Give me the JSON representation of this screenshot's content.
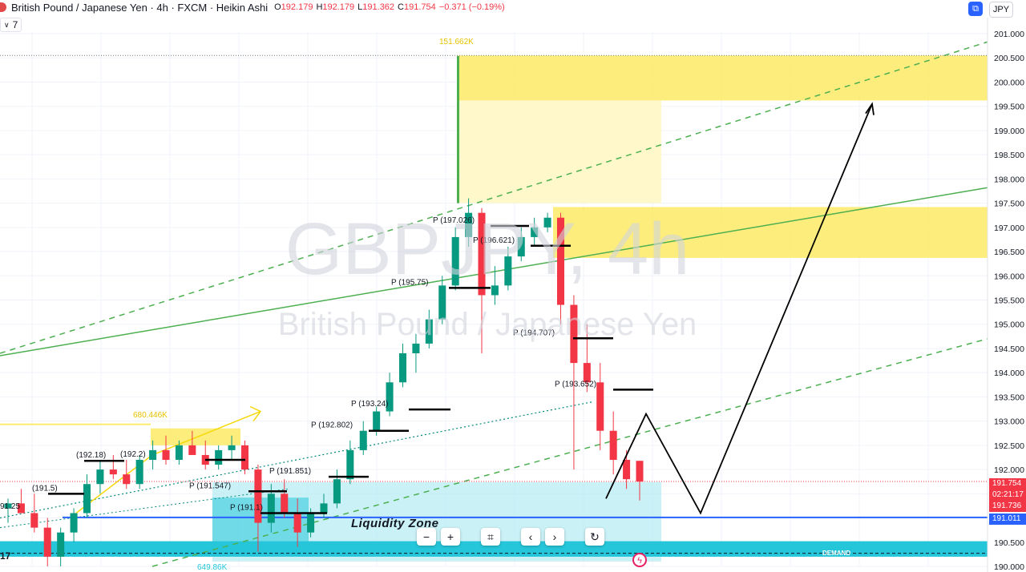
{
  "header": {
    "symbol_title": "British Pound / Japanese Yen · 4h · FXCM · Heikin Ashi",
    "open_label": "O",
    "open_value": "192.179",
    "high_label": "H",
    "high_value": "192.179",
    "low_label": "L",
    "low_value": "191.362",
    "close_label": "C",
    "close_value": "191.754",
    "change_value": "−0.371 (−0.19%)",
    "indicator_count": "7"
  },
  "toolbar": {
    "currency_label": "JPY",
    "toggle_icon": "chart-toggle-icon"
  },
  "watermark": {
    "symbol": "GBPJPY, 4h",
    "description": "British Pound / Japanese Yen"
  },
  "price_tags": {
    "current": "191.754",
    "countdown": "02:21:17",
    "secondary": "191.736",
    "liquidity_line": "191.011"
  },
  "annotations": {
    "liquidity_zone": "Liquidity Zone",
    "demand": "DEMAND",
    "volume_top": "151.662K",
    "volume_mid": "680.446K",
    "volume_bottom": "649.86K",
    "left_partial_a": "91.25",
    "left_partial_b": "17"
  },
  "navigation": {
    "zoom_out": "−",
    "zoom_in": "+",
    "reset": "⌗",
    "scroll_left": "‹",
    "scroll_right": "›",
    "refresh": "↻"
  },
  "colors": {
    "bull": "#089981",
    "bear": "#f23645",
    "zone_yellow": "#fdeb6e",
    "zone_light_yellow": "#fff7c4",
    "zone_cyan": "#26c6da",
    "zone_light_cyan": "#b2ebf2",
    "trend_green": "#4caf50",
    "liquidity_blue": "#2962ff"
  },
  "chart_data": {
    "type": "candlestick",
    "style": "Heikin Ashi",
    "symbol": "GBPJPY",
    "timeframe": "4h",
    "y_axis": {
      "side": "right",
      "ticks": [
        "201.000",
        "200.500",
        "200.000",
        "199.500",
        "199.000",
        "198.500",
        "198.000",
        "197.500",
        "197.000",
        "196.500",
        "196.000",
        "195.500",
        "195.000",
        "194.500",
        "194.000",
        "193.500",
        "193.000",
        "192.500",
        "192.000",
        "191.500",
        "191.000",
        "190.500",
        "190.000"
      ],
      "ylim": [
        190.0,
        201.0
      ]
    },
    "pivot_labels": [
      {
        "text": "P (197.026)",
        "price": 197.03
      },
      {
        "text": "P (196.621)",
        "price": 196.62
      },
      {
        "text": "P (195.75)",
        "price": 195.75
      },
      {
        "text": "P (194.707)",
        "price": 194.71
      },
      {
        "text": "P (193.652)",
        "price": 193.65
      },
      {
        "text": "P (193.24)",
        "price": 193.24
      },
      {
        "text": "P (192.802)",
        "price": 192.8
      },
      {
        "text": "P (191.851)",
        "price": 191.85
      },
      {
        "text": "P (191.547)",
        "price": 191.55
      },
      {
        "text": "P (191.1)",
        "price": 191.1
      },
      {
        "text": "(192.18)",
        "price": 192.18
      },
      {
        "text": "(191.5)",
        "price": 191.5
      },
      {
        "text": "(192.2)",
        "price": 192.2
      }
    ],
    "key_levels": {
      "current_close": 191.754,
      "liquidity_line": 191.011,
      "supply_zone_top": [
        199.62,
        200.55
      ],
      "supply_zone_mid": [
        196.37,
        197.42
      ],
      "demand_zone": [
        190.1,
        191.74
      ]
    },
    "projection_path_prices": [
      191.4,
      193.15,
      191.1,
      199.55
    ],
    "candles": [
      {
        "o": 191.2,
        "h": 191.4,
        "l": 190.9,
        "c": 191.3
      },
      {
        "o": 191.3,
        "h": 191.6,
        "l": 191.1,
        "c": 191.1
      },
      {
        "o": 191.1,
        "h": 191.5,
        "l": 190.7,
        "c": 190.8
      },
      {
        "o": 190.8,
        "h": 191.0,
        "l": 190.0,
        "c": 190.2
      },
      {
        "o": 190.2,
        "h": 190.8,
        "l": 190.0,
        "c": 190.7
      },
      {
        "o": 190.7,
        "h": 191.2,
        "l": 190.5,
        "c": 191.1
      },
      {
        "o": 191.1,
        "h": 191.9,
        "l": 191.0,
        "c": 191.7
      },
      {
        "o": 191.7,
        "h": 192.2,
        "l": 191.5,
        "c": 192.0
      },
      {
        "o": 192.0,
        "h": 192.3,
        "l": 191.8,
        "c": 191.9
      },
      {
        "o": 191.9,
        "h": 192.2,
        "l": 191.6,
        "c": 191.7
      },
      {
        "o": 191.7,
        "h": 192.3,
        "l": 191.6,
        "c": 192.2
      },
      {
        "o": 192.2,
        "h": 192.6,
        "l": 192.0,
        "c": 192.4
      },
      {
        "o": 192.4,
        "h": 192.7,
        "l": 192.1,
        "c": 192.2
      },
      {
        "o": 192.2,
        "h": 192.6,
        "l": 192.1,
        "c": 192.5
      },
      {
        "o": 192.5,
        "h": 192.8,
        "l": 192.3,
        "c": 192.3
      },
      {
        "o": 192.3,
        "h": 192.6,
        "l": 192.0,
        "c": 192.1
      },
      {
        "o": 192.1,
        "h": 192.5,
        "l": 192.0,
        "c": 192.4
      },
      {
        "o": 192.4,
        "h": 192.7,
        "l": 192.2,
        "c": 192.5
      },
      {
        "o": 192.5,
        "h": 192.6,
        "l": 191.9,
        "c": 192.0
      },
      {
        "o": 192.0,
        "h": 192.1,
        "l": 190.3,
        "c": 190.9
      },
      {
        "o": 190.9,
        "h": 191.7,
        "l": 190.7,
        "c": 191.5
      },
      {
        "o": 191.5,
        "h": 191.8,
        "l": 191.0,
        "c": 191.1
      },
      {
        "o": 191.1,
        "h": 191.4,
        "l": 190.4,
        "c": 190.7
      },
      {
        "o": 190.7,
        "h": 191.2,
        "l": 190.6,
        "c": 191.1
      },
      {
        "o": 191.1,
        "h": 191.5,
        "l": 191.0,
        "c": 191.3
      },
      {
        "o": 191.3,
        "h": 192.0,
        "l": 191.2,
        "c": 191.8
      },
      {
        "o": 191.8,
        "h": 192.6,
        "l": 191.7,
        "c": 192.4
      },
      {
        "o": 192.4,
        "h": 193.0,
        "l": 192.3,
        "c": 192.8
      },
      {
        "o": 192.8,
        "h": 193.3,
        "l": 192.7,
        "c": 193.2
      },
      {
        "o": 193.2,
        "h": 194.0,
        "l": 193.1,
        "c": 193.8
      },
      {
        "o": 193.8,
        "h": 194.6,
        "l": 193.7,
        "c": 194.4
      },
      {
        "o": 194.4,
        "h": 194.8,
        "l": 194.0,
        "c": 194.6
      },
      {
        "o": 194.6,
        "h": 195.3,
        "l": 194.5,
        "c": 195.1
      },
      {
        "o": 195.1,
        "h": 196.0,
        "l": 195.0,
        "c": 195.8
      },
      {
        "o": 195.8,
        "h": 197.0,
        "l": 195.7,
        "c": 196.8
      },
      {
        "o": 196.8,
        "h": 197.6,
        "l": 196.6,
        "c": 197.3
      },
      {
        "o": 197.3,
        "h": 197.4,
        "l": 194.4,
        "c": 195.6
      },
      {
        "o": 195.6,
        "h": 196.2,
        "l": 195.4,
        "c": 195.8
      },
      {
        "o": 195.8,
        "h": 196.6,
        "l": 195.7,
        "c": 196.4
      },
      {
        "o": 196.4,
        "h": 197.0,
        "l": 196.3,
        "c": 196.8
      },
      {
        "o": 196.8,
        "h": 197.2,
        "l": 196.6,
        "c": 197.0
      },
      {
        "o": 197.0,
        "h": 197.3,
        "l": 196.9,
        "c": 197.2
      },
      {
        "o": 197.2,
        "h": 197.3,
        "l": 195.0,
        "c": 195.4
      },
      {
        "o": 195.4,
        "h": 195.6,
        "l": 192.0,
        "c": 194.2
      },
      {
        "o": 194.2,
        "h": 195.0,
        "l": 193.6,
        "c": 193.8
      },
      {
        "o": 193.8,
        "h": 194.2,
        "l": 192.4,
        "c": 192.8
      },
      {
        "o": 192.8,
        "h": 193.2,
        "l": 191.9,
        "c": 192.2
      },
      {
        "o": 192.2,
        "h": 192.4,
        "l": 191.6,
        "c": 191.8
      },
      {
        "o": 192.18,
        "h": 192.18,
        "l": 191.36,
        "c": 191.75
      }
    ]
  }
}
